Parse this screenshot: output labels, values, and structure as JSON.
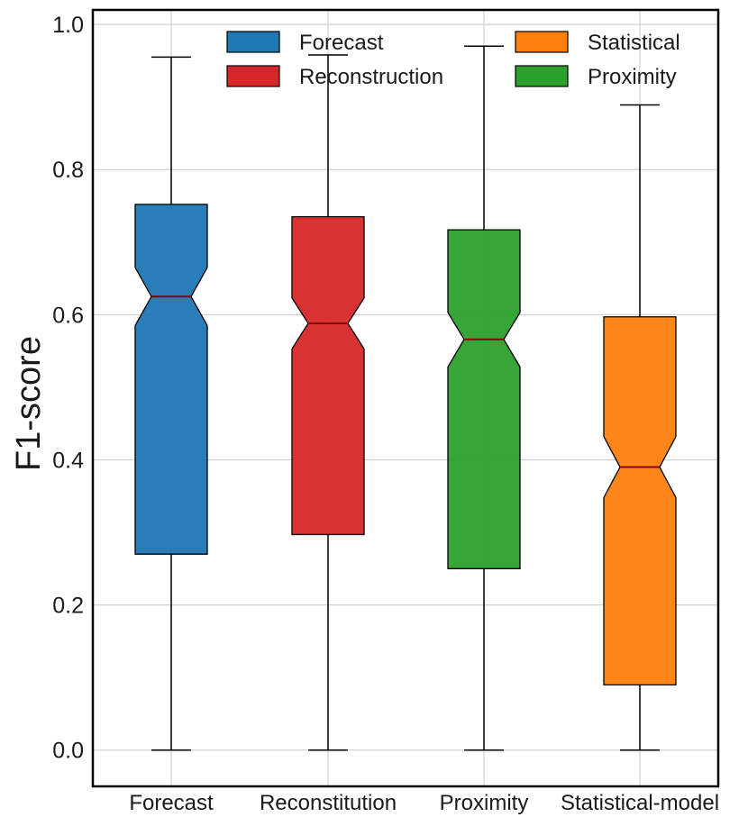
{
  "chart_data": {
    "type": "boxplot",
    "notched": true,
    "ylabel": "F1-score",
    "xlabel": "",
    "ylim": [
      -0.05,
      1.02
    ],
    "yticks": [
      0.0,
      0.2,
      0.4,
      0.6,
      0.8,
      1.0
    ],
    "ytick_labels": [
      "0.0",
      "0.2",
      "0.4",
      "0.6",
      "0.8",
      "1.0"
    ],
    "grid": true,
    "legend_position": "top",
    "categories": [
      "Forecast",
      "Reconstitution",
      "Proximity",
      "Statistical-model"
    ],
    "boxes": [
      {
        "category": "Forecast",
        "color": "#1f77b4",
        "whisker_low": 0.0,
        "q1": 0.27,
        "notch_low": 0.585,
        "median": 0.625,
        "notch_high": 0.665,
        "q3": 0.752,
        "whisker_high": 0.955
      },
      {
        "category": "Reconstitution",
        "color": "#d62728",
        "whisker_low": 0.0,
        "q1": 0.297,
        "notch_low": 0.553,
        "median": 0.588,
        "notch_high": 0.623,
        "q3": 0.735,
        "whisker_high": 0.958
      },
      {
        "category": "Proximity",
        "color": "#2ca02c",
        "whisker_low": 0.0,
        "q1": 0.25,
        "notch_low": 0.528,
        "median": 0.566,
        "notch_high": 0.603,
        "q3": 0.717,
        "whisker_high": 0.97
      },
      {
        "category": "Statistical-model",
        "color": "#ff7f0e",
        "whisker_low": 0.0,
        "q1": 0.09,
        "notch_low": 0.348,
        "median": 0.39,
        "notch_high": 0.432,
        "q3": 0.597,
        "whisker_high": 0.889
      }
    ],
    "legend": [
      {
        "label": "Forecast",
        "color": "#1f77b4"
      },
      {
        "label": "Statistical",
        "color": "#ff7f0e"
      },
      {
        "label": "Reconstruction",
        "color": "#d62728"
      },
      {
        "label": "Proximity",
        "color": "#2ca02c"
      }
    ],
    "median_color": "#8b0000"
  }
}
